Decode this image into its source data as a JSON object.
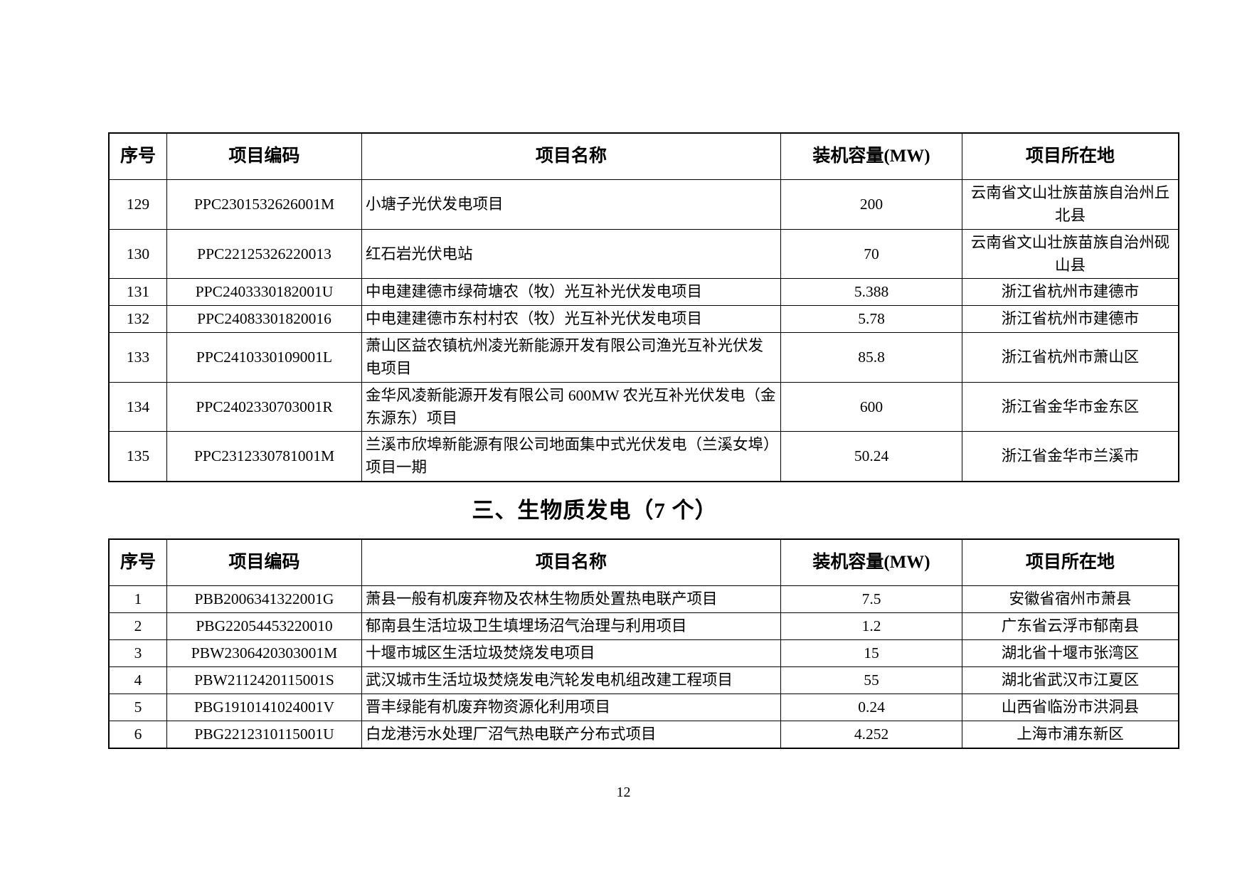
{
  "section_heading": "三、生物质发电（7 个）",
  "page_number": "12",
  "solar_table": {
    "headers": [
      "序号",
      "项目编码",
      "项目名称",
      "装机容量(MW)",
      "项目所在地"
    ],
    "rows": [
      [
        "129",
        "PPC2301532626001M",
        "小塘子光伏发电项目",
        "200",
        "云南省文山壮族苗族自治州丘北县"
      ],
      [
        "130",
        "PPC22125326220013",
        "红石岩光伏电站",
        "70",
        "云南省文山壮族苗族自治州砚山县"
      ],
      [
        "131",
        "PPC2403330182001U",
        "中电建建德市绿荷塘农（牧）光互补光伏发电项目",
        "5.388",
        "浙江省杭州市建德市"
      ],
      [
        "132",
        "PPC24083301820016",
        "中电建建德市东村村农（牧）光互补光伏发电项目",
        "5.78",
        "浙江省杭州市建德市"
      ],
      [
        "133",
        "PPC2410330109001L",
        "萧山区益农镇杭州凌光新能源开发有限公司渔光互补光伏发电项目",
        "85.8",
        "浙江省杭州市萧山区"
      ],
      [
        "134",
        "PPC2402330703001R",
        "金华风凌新能源开发有限公司 600MW 农光互补光伏发电（金东源东）项目",
        "600",
        "浙江省金华市金东区"
      ],
      [
        "135",
        "PPC2312330781001M",
        "兰溪市欣埠新能源有限公司地面集中式光伏发电（兰溪女埠）项目一期",
        "50.24",
        "浙江省金华市兰溪市"
      ]
    ]
  },
  "biomass_table": {
    "headers": [
      "序号",
      "项目编码",
      "项目名称",
      "装机容量(MW)",
      "项目所在地"
    ],
    "rows": [
      [
        "1",
        "PBB2006341322001G",
        "萧县一般有机废弃物及农林生物质处置热电联产项目",
        "7.5",
        "安徽省宿州市萧县"
      ],
      [
        "2",
        "PBG22054453220010",
        "郁南县生活垃圾卫生填埋场沼气治理与利用项目",
        "1.2",
        "广东省云浮市郁南县"
      ],
      [
        "3",
        "PBW2306420303001M",
        "十堰市城区生活垃圾焚烧发电项目",
        "15",
        "湖北省十堰市张湾区"
      ],
      [
        "4",
        "PBW2112420115001S",
        "武汉城市生活垃圾焚烧发电汽轮发电机组改建工程项目",
        "55",
        "湖北省武汉市江夏区"
      ],
      [
        "5",
        "PBG1910141024001V",
        "晋丰绿能有机废弃物资源化利用项目",
        "0.24",
        "山西省临汾市洪洞县"
      ],
      [
        "6",
        "PBG2212310115001U",
        "白龙港污水处理厂沼气热电联产分布式项目",
        "4.252",
        "上海市浦东新区"
      ]
    ]
  }
}
